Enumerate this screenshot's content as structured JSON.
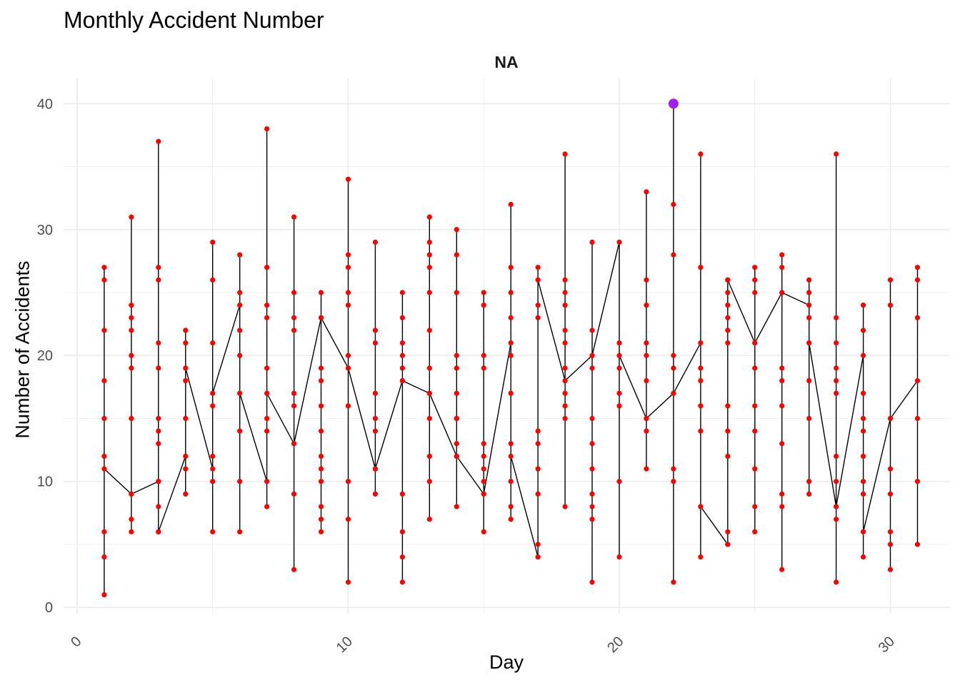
{
  "chart_data": {
    "type": "line",
    "title": "Monthly Accident Number",
    "facet_label": "NA",
    "xlabel": "Day",
    "ylabel": "Number of Accidents",
    "xlim": [
      -0.5,
      32.2
    ],
    "ylim": [
      -0.5,
      42
    ],
    "x_ticks": [
      0,
      10,
      20,
      30
    ],
    "y_ticks": [
      0,
      10,
      20,
      30,
      40
    ],
    "x_tick_rotation": 45,
    "grid": true,
    "colors": {
      "line": "#000000",
      "point": "#ff0000",
      "highlight": "#a020f0",
      "grid": "#ebebeb"
    },
    "series": [
      {
        "name": "accidents",
        "x": [
          1,
          1,
          1,
          1,
          1,
          1,
          1,
          1,
          1,
          1,
          2,
          2,
          2,
          2,
          2,
          2,
          2,
          2,
          2,
          2,
          2,
          3,
          3,
          3,
          3,
          3,
          3,
          3,
          3,
          3,
          3,
          3,
          3,
          3,
          4,
          4,
          4,
          4,
          4,
          4,
          4,
          4,
          5,
          5,
          5,
          5,
          5,
          5,
          5,
          5,
          5,
          6,
          6,
          6,
          6,
          6,
          6,
          6,
          6,
          6,
          7,
          7,
          7,
          7,
          7,
          7,
          7,
          7,
          7,
          7,
          8,
          8,
          8,
          8,
          8,
          8,
          8,
          8,
          8,
          8,
          9,
          9,
          9,
          9,
          9,
          9,
          9,
          9,
          9,
          9,
          9,
          9,
          9,
          10,
          10,
          10,
          10,
          10,
          10,
          10,
          10,
          10,
          10,
          10,
          10,
          11,
          11,
          11,
          11,
          11,
          11,
          11,
          11,
          11,
          12,
          12,
          12,
          12,
          12,
          12,
          12,
          12,
          12,
          12,
          12,
          13,
          13,
          13,
          13,
          13,
          13,
          13,
          13,
          13,
          13,
          13,
          13,
          13,
          14,
          14,
          14,
          14,
          14,
          14,
          14,
          14,
          14,
          14,
          14,
          14,
          15,
          15,
          15,
          15,
          15,
          15,
          15,
          15,
          15,
          15,
          15,
          16,
          16,
          16,
          16,
          16,
          16,
          16,
          16,
          16,
          16,
          16,
          16,
          17,
          17,
          17,
          17,
          17,
          17,
          17,
          17,
          17,
          17,
          17,
          17,
          18,
          18,
          18,
          18,
          18,
          18,
          18,
          18,
          18,
          18,
          18,
          18,
          18,
          19,
          19,
          19,
          19,
          19,
          19,
          19,
          19,
          19,
          19,
          19,
          19,
          20,
          20,
          20,
          20,
          20,
          20,
          20,
          20,
          21,
          21,
          21,
          21,
          21,
          21,
          21,
          21,
          21,
          21,
          21,
          22,
          22,
          22,
          22,
          22,
          22,
          22,
          22,
          22,
          22,
          23,
          23,
          23,
          23,
          23,
          23,
          23,
          23,
          23,
          23,
          24,
          24,
          24,
          24,
          24,
          24,
          24,
          24,
          24,
          24,
          24,
          24,
          24,
          25,
          25,
          25,
          25,
          25,
          25,
          25,
          25,
          25,
          25,
          25,
          26,
          26,
          26,
          26,
          26,
          26,
          26,
          26,
          26,
          26,
          26,
          27,
          27,
          27,
          27,
          27,
          27,
          27,
          27,
          27,
          27,
          28,
          28,
          28,
          28,
          28,
          28,
          28,
          28,
          28,
          28,
          28,
          28,
          29,
          29,
          29,
          29,
          29,
          29,
          29,
          29,
          29,
          29,
          29,
          29,
          30,
          30,
          30,
          30,
          30,
          30,
          30,
          30,
          30,
          31,
          31,
          31,
          31,
          31,
          31,
          31
        ],
        "y": [
          12,
          27,
          1,
          6,
          22,
          18,
          15,
          4,
          26,
          11,
          9,
          31,
          6,
          24,
          19,
          20,
          23,
          15,
          7,
          22,
          9,
          10,
          37,
          6,
          27,
          21,
          15,
          14,
          19,
          13,
          26,
          10,
          8,
          6,
          12,
          22,
          11,
          9,
          15,
          21,
          18,
          19,
          11,
          29,
          6,
          26,
          16,
          12,
          10,
          21,
          17,
          24,
          28,
          6,
          22,
          10,
          20,
          25,
          14,
          17,
          10,
          38,
          8,
          24,
          14,
          23,
          19,
          27,
          15,
          17,
          13,
          31,
          3,
          22,
          16,
          25,
          23,
          9,
          17,
          13,
          23,
          25,
          6,
          16,
          18,
          19,
          12,
          10,
          14,
          8,
          11,
          7,
          23,
          19,
          34,
          2,
          28,
          16,
          24,
          10,
          7,
          27,
          20,
          25,
          19,
          11,
          29,
          9,
          22,
          15,
          21,
          17,
          14,
          11,
          18,
          25,
          2,
          23,
          6,
          21,
          4,
          9,
          20,
          19,
          18,
          17,
          31,
          7,
          28,
          15,
          22,
          29,
          12,
          19,
          27,
          25,
          10,
          17,
          12,
          30,
          8,
          20,
          25,
          19,
          13,
          28,
          17,
          15,
          15,
          12,
          9,
          25,
          6,
          19,
          13,
          20,
          11,
          24,
          10,
          12,
          9,
          21,
          32,
          7,
          10,
          23,
          25,
          8,
          17,
          27,
          13,
          20,
          12,
          4,
          27,
          5,
          13,
          24,
          26,
          9,
          14,
          11,
          23,
          4,
          26,
          18,
          36,
          8,
          22,
          21,
          16,
          25,
          15,
          19,
          17,
          24,
          26,
          18,
          20,
          29,
          2,
          8,
          13,
          22,
          15,
          9,
          11,
          19,
          7,
          20,
          29,
          4,
          21,
          16,
          19,
          17,
          10,
          20,
          15,
          33,
          11,
          26,
          14,
          18,
          24,
          20,
          21,
          15,
          15,
          17,
          40,
          2,
          28,
          20,
          19,
          32,
          10,
          11,
          17,
          21,
          36,
          4,
          27,
          19,
          8,
          16,
          18,
          14,
          8,
          5,
          26,
          5,
          21,
          14,
          25,
          23,
          6,
          12,
          16,
          24,
          22,
          26,
          21,
          27,
          6,
          19,
          8,
          26,
          14,
          16,
          25,
          11,
          21,
          25,
          28,
          3,
          8,
          19,
          27,
          16,
          9,
          18,
          13,
          25,
          24,
          26,
          9,
          21,
          15,
          25,
          23,
          18,
          10,
          21,
          8,
          36,
          2,
          21,
          12,
          10,
          19,
          7,
          23,
          18,
          17,
          8,
          20,
          24,
          4,
          22,
          6,
          12,
          10,
          17,
          15,
          9,
          14,
          6,
          15,
          26,
          3,
          11,
          9,
          6,
          5,
          24,
          15,
          18,
          27,
          5,
          26,
          15,
          10,
          23
        ]
      }
    ],
    "highlight": {
      "x": 22,
      "y": 40
    }
  }
}
